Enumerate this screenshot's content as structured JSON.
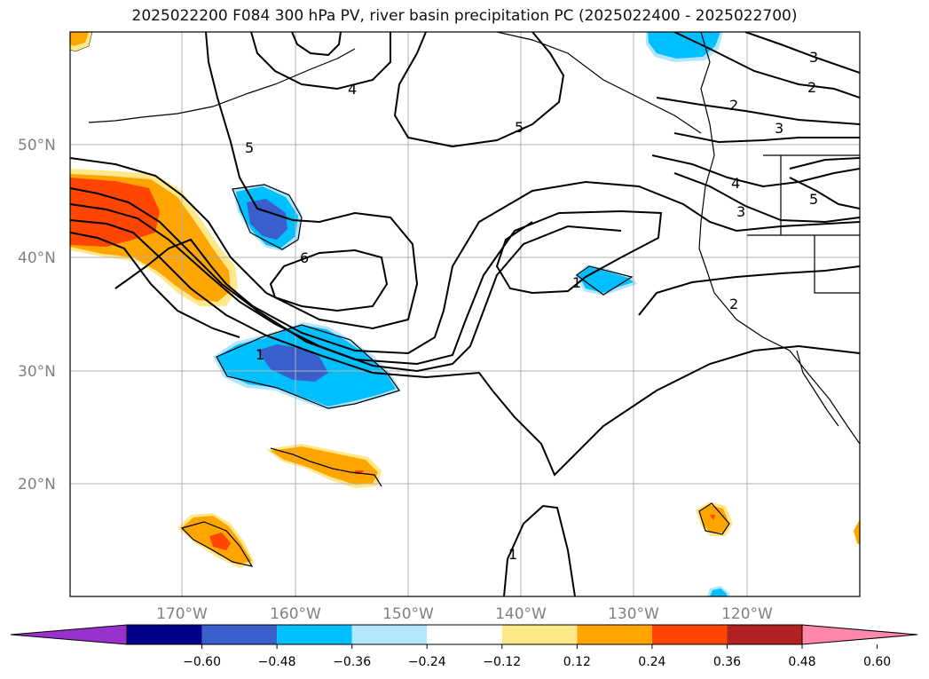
{
  "title": "2025022200 F084 300 hPa PV, river basin precipitation PC (2025022400 - 2025022700)",
  "map": {
    "lat_labels": [
      "50°N",
      "40°N",
      "30°N",
      "20°N"
    ],
    "lon_labels": [
      "170°W",
      "160°W",
      "150°W",
      "140°W",
      "130°W",
      "120°W"
    ],
    "contour_labels": [
      "4",
      "5",
      "5",
      "3",
      "2",
      "2",
      "3",
      "4",
      "3",
      "5",
      "6",
      "1",
      "1",
      "2",
      "1"
    ],
    "colors": {
      "neg_strong": "#000099",
      "neg_mid": "#3a5fcd",
      "neg_light": "#00bfff",
      "neg_faint": "#b3e5fc",
      "pos_faint": "#ffe88a",
      "pos_light": "#ffa500",
      "pos_mid": "#ff4500",
      "pos_strong": "#b22222"
    }
  },
  "colorbar": {
    "ticks": [
      "−0.60",
      "−0.48",
      "−0.36",
      "−0.24",
      "−0.12",
      "0.12",
      "0.24",
      "0.36",
      "0.48",
      "0.60"
    ],
    "colors": [
      "#9932cc",
      "#00008b",
      "#3a5fcd",
      "#00bfff",
      "#b3e5fc",
      "#ffffff",
      "#ffe88a",
      "#ffa500",
      "#ff4500",
      "#b22222",
      "#ff88aa"
    ]
  }
}
